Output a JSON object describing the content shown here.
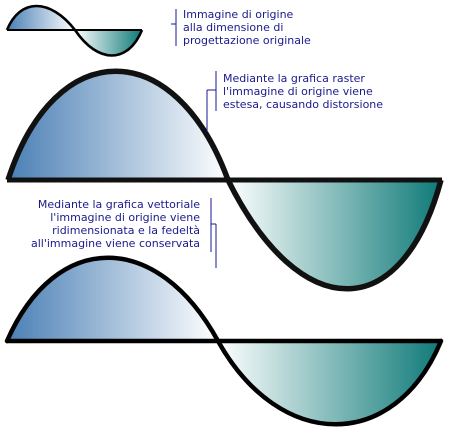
{
  "captions": {
    "original": [
      "Immagine di origine",
      "alla dimensione di",
      "progettazione originale"
    ],
    "raster": [
      "Mediante la grafica raster",
      "l'immagine di origine viene",
      "estesa, causando distorsione"
    ],
    "vector": [
      "Mediante la grafica vettoriale",
      "l'immagine di origine viene",
      "ridimensionata e la fedeltà",
      "all'immagine viene conservata"
    ]
  },
  "colors": {
    "caption_text": "#1a1a8c",
    "callout_line": "#1a1a8c",
    "wave_outline": "#000000",
    "positive_lobe_dark": "#4a7fb5",
    "positive_lobe_light": "#ffffff",
    "negative_lobe_light": "#ffffff",
    "negative_lobe_dark": "#0e7a78"
  }
}
